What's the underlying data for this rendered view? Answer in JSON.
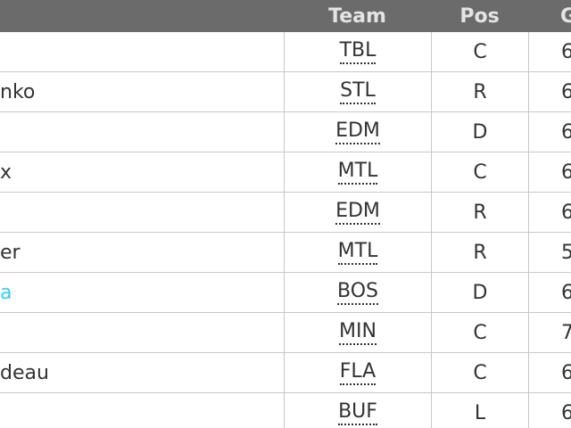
{
  "header": {
    "team": "Team",
    "pos": "Pos",
    "gp": "G"
  },
  "rows": [
    {
      "team": "TBL",
      "pos": "C",
      "gp": "6"
    },
    {
      "name": "nko",
      "team": "STL",
      "pos": "R",
      "gp": "6"
    },
    {
      "team": "EDM",
      "pos": "D",
      "gp": "6"
    },
    {
      "name": "x",
      "team": "MTL",
      "pos": "C",
      "gp": "6"
    },
    {
      "team": "EDM",
      "pos": "R",
      "gp": "6"
    },
    {
      "name": "er",
      "team": "MTL",
      "pos": "R",
      "gp": "5"
    },
    {
      "name": "a",
      "link": true,
      "team": "BOS",
      "pos": "D",
      "gp": "6"
    },
    {
      "team": "MIN",
      "pos": "C",
      "gp": "7"
    },
    {
      "name": "deau",
      "team": "FLA",
      "pos": "C",
      "gp": "6"
    },
    {
      "team": "BUF",
      "pos": "L",
      "gp": "6"
    }
  ]
}
